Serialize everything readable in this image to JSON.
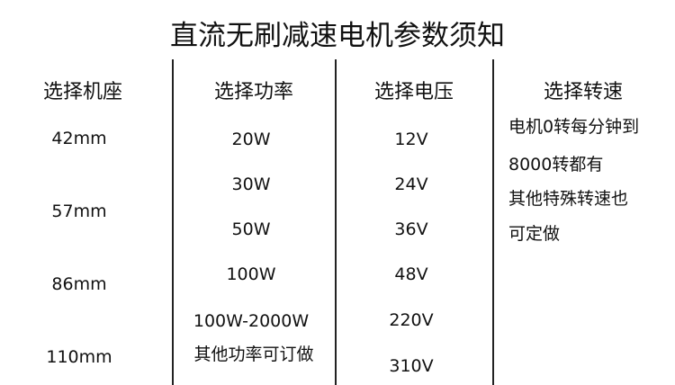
{
  "title": "直流无刷减速电机参数须知",
  "columns": [
    {
      "header": "选择机座",
      "values": [
        "42mm",
        "57mm",
        "86mm",
        "110mm"
      ]
    },
    {
      "header": "选择功率",
      "values": [
        "20W",
        "30W",
        "50W",
        "100W",
        "100W-2000W",
        "其他功率可订做"
      ]
    },
    {
      "header": "选择电压",
      "values": [
        "12V",
        "24V",
        "36V",
        "48V",
        "220V",
        "310V"
      ]
    },
    {
      "header": "选择转速",
      "values": [
        "电机0转每分钟到",
        "8000转都有",
        "其他特殊转速也",
        "可定做"
      ]
    }
  ]
}
